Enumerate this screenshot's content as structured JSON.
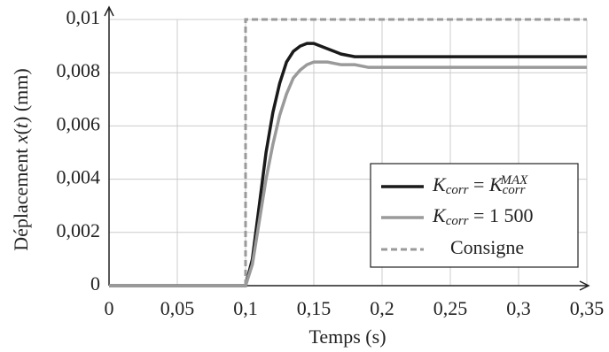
{
  "chart_data": {
    "type": "line",
    "xlabel": "Temps (s)",
    "ylabel": [
      {
        "text": "Déplacement "
      },
      {
        "text": "x",
        "style": "italic"
      },
      {
        "text": "("
      },
      {
        "text": "t",
        "style": "italic"
      },
      {
        "text": ") (mm)"
      }
    ],
    "x": [
      0,
      0.05,
      0.1,
      0.105,
      0.11,
      0.115,
      0.12,
      0.125,
      0.13,
      0.135,
      0.14,
      0.145,
      0.15,
      0.155,
      0.16,
      0.17,
      0.18,
      0.19,
      0.2,
      0.25,
      0.3,
      0.35
    ],
    "series": [
      {
        "name": [
          {
            "text": "K",
            "style": "italic"
          },
          {
            "text": "corr",
            "style": "sub"
          },
          {
            "text": " = "
          },
          {
            "text": "K",
            "style": "italic"
          },
          {
            "text": "corr",
            "style": "sub"
          },
          {
            "text": "MAX",
            "style": "sup"
          }
        ],
        "color": "#1a1a1a",
        "dash": false,
        "values": [
          0,
          0,
          0,
          0.001,
          0.003,
          0.005,
          0.0065,
          0.0076,
          0.0084,
          0.0088,
          0.009,
          0.0091,
          0.0091,
          0.009,
          0.0089,
          0.0087,
          0.0086,
          0.0086,
          0.0086,
          0.0086,
          0.0086,
          0.0086
        ]
      },
      {
        "name": [
          {
            "text": "K",
            "style": "italic"
          },
          {
            "text": "corr",
            "style": "sub"
          },
          {
            "text": " = 1 500"
          }
        ],
        "color": "#9a9a9a",
        "dash": false,
        "values": [
          0,
          0,
          0,
          0.0008,
          0.0024,
          0.004,
          0.0053,
          0.0064,
          0.0072,
          0.0078,
          0.0081,
          0.0083,
          0.0084,
          0.0084,
          0.0084,
          0.0083,
          0.0083,
          0.0082,
          0.0082,
          0.0082,
          0.0082,
          0.0082
        ]
      },
      {
        "name": [
          {
            "text": "Consigne"
          }
        ],
        "color": "#9a9a9a",
        "dash": true,
        "x": [
          0,
          0.1,
          0.1,
          0.35
        ],
        "values": [
          0,
          0,
          0.01,
          0.01
        ]
      }
    ],
    "xlim": [
      0,
      0.35
    ],
    "xticks": [
      0,
      {
        "value": 0.05,
        "label": "0,05"
      },
      {
        "value": 0.1,
        "label": "0,1"
      },
      {
        "value": 0.15,
        "label": "0,15"
      },
      {
        "value": 0.2,
        "label": "0,2"
      },
      {
        "value": 0.25,
        "label": "0,25"
      },
      {
        "value": 0.3,
        "label": "0,3"
      },
      {
        "value": 0.35,
        "label": "0,35"
      }
    ],
    "ylim": [
      0,
      0.01
    ],
    "yticks": [
      0,
      {
        "value": 0.002,
        "label": "0,002"
      },
      {
        "value": 0.004,
        "label": "0,004"
      },
      {
        "value": 0.006,
        "label": "0,006"
      },
      {
        "value": 0.008,
        "label": "0,008"
      },
      {
        "value": 0.01,
        "label": "0,01"
      }
    ],
    "grid": true,
    "legend": "lower right"
  }
}
